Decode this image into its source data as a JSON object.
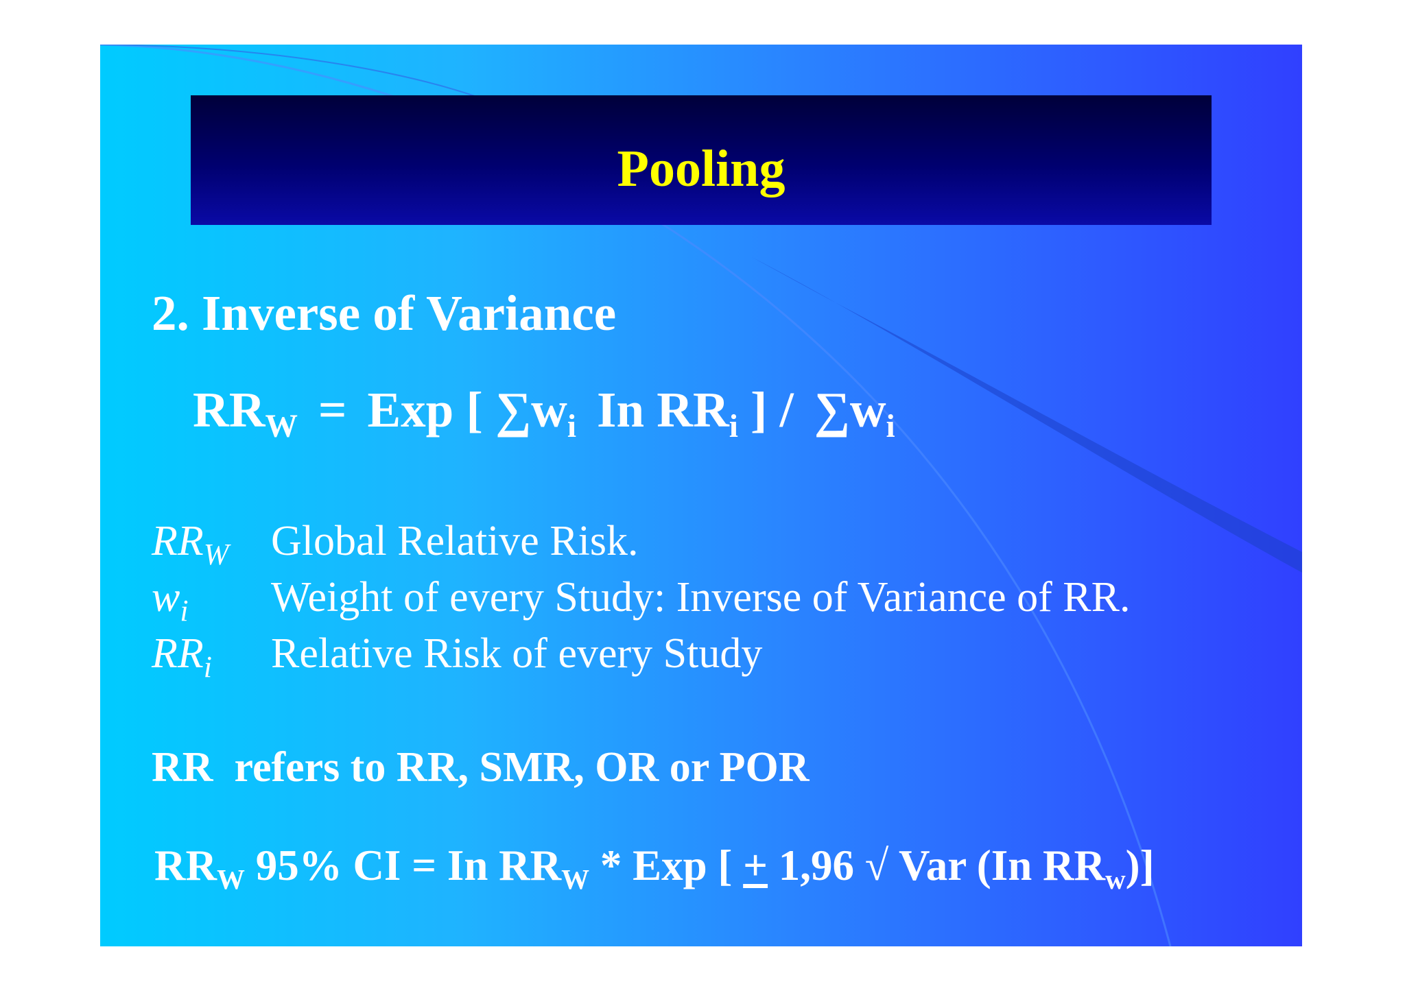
{
  "slide": {
    "title": "Pooling",
    "colors": {
      "title_text": "#ffff00",
      "title_bar": "#000070",
      "body_text": "#ffffff",
      "background_left": "#00cbff",
      "background_right": "#3040ff"
    }
  },
  "section": {
    "heading": "2. Inverse of Variance"
  },
  "formula": {
    "lhs": "RR",
    "lhs_sub": "W",
    "equals": "=",
    "exp_open": "Exp [",
    "sigma1": "∑",
    "w1": "w",
    "w1_sub": "i",
    "ln_rr": "In RR",
    "rr_sub": "i",
    "close_div": "] /",
    "sigma2": "∑",
    "w2": "w",
    "w2_sub": "i"
  },
  "legend": [
    {
      "term": "RR",
      "term_sub": "W",
      "description": "Global Relative Risk."
    },
    {
      "term": "w",
      "term_sub": "i",
      "description": "Weight of every Study: Inverse of Variance of RR."
    },
    {
      "term": "RR",
      "term_sub": "i",
      "description": "Relative Risk of every Study"
    }
  ],
  "note": "RR  refers to RR, SMR, OR or POR",
  "ci_formula": {
    "lhs": "RR",
    "lhs_sub": "W",
    "ci_label": "95% CI = In RR",
    "ln_sub": "W",
    "exp_open": "* Exp [",
    "plus_minus": "+",
    "value": "1,96 √ Var (In RR",
    "var_sub": "w",
    "close": ")]"
  }
}
